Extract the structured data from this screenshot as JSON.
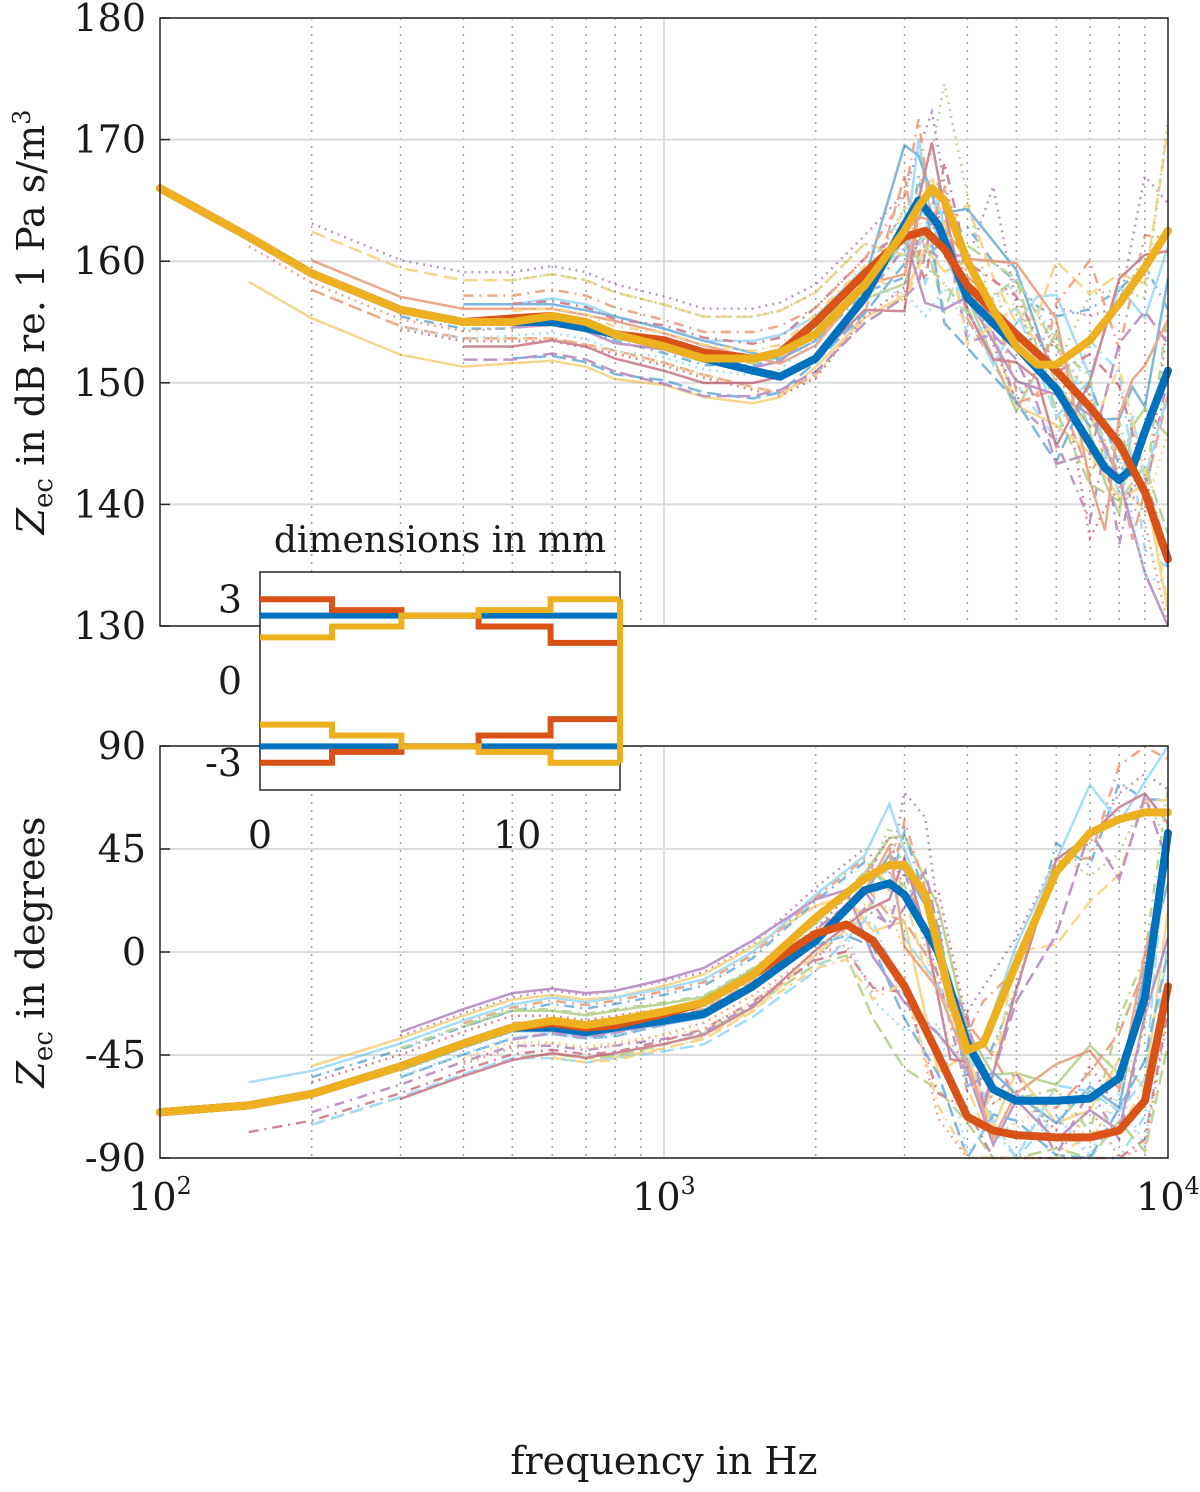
{
  "chart_data": [
    {
      "type": "line",
      "panel": "magnitude",
      "ylabel_main": "Z",
      "ylabel_sub": "ec",
      "ylabel_rest": " in dB re. 1 Pa s/m",
      "ylabel_sup": "3",
      "xscale": "log",
      "xlim": [
        100,
        10000
      ],
      "ylim": [
        130,
        180
      ],
      "yticks": [
        "130",
        "140",
        "150",
        "160",
        "170",
        "180"
      ],
      "grid": true,
      "series": [
        {
          "name": "blue",
          "color": "#0072BD",
          "x": [
            100,
            150,
            200,
            300,
            400,
            500,
            600,
            700,
            800,
            1000,
            1200,
            1500,
            1700,
            2000,
            2500,
            3000,
            3200,
            3500,
            4000,
            5000,
            6000,
            7000,
            7500,
            8000,
            8500,
            9000,
            10000
          ],
          "y": [
            166,
            162,
            159,
            156,
            155,
            155,
            155,
            154.5,
            154,
            153,
            152,
            151,
            150.5,
            152,
            157,
            163,
            165,
            163,
            157,
            153,
            149.5,
            145,
            143,
            142,
            143,
            146,
            151
          ]
        },
        {
          "name": "orange",
          "color": "#D95319",
          "x": [
            100,
            150,
            200,
            300,
            400,
            500,
            600,
            700,
            800,
            1000,
            1200,
            1500,
            1700,
            2000,
            2500,
            3000,
            3300,
            3600,
            4000,
            5000,
            6000,
            7000,
            8000,
            9000,
            10000
          ],
          "y": [
            166,
            162,
            159,
            156,
            155,
            155.3,
            155.5,
            155,
            154,
            153.5,
            152.5,
            152,
            152.5,
            155,
            159,
            162,
            162.5,
            161,
            158,
            154,
            151,
            148,
            145,
            141,
            135.5
          ]
        },
        {
          "name": "yellow",
          "color": "#EDB120",
          "x": [
            100,
            150,
            200,
            300,
            400,
            500,
            600,
            700,
            800,
            1000,
            1200,
            1500,
            1700,
            2000,
            2500,
            3000,
            3200,
            3400,
            3600,
            4000,
            4500,
            5000,
            5500,
            6000,
            7000,
            8000,
            9000,
            10000
          ],
          "y": [
            166,
            162,
            159,
            156,
            155,
            155,
            155.5,
            155,
            154,
            153,
            152,
            152,
            152.5,
            154,
            158,
            162.5,
            164.5,
            166,
            165,
            160,
            156,
            153,
            151.5,
            151.5,
            153.5,
            156.5,
            159.5,
            162.5
          ]
        }
      ]
    },
    {
      "type": "line",
      "panel": "phase",
      "ylabel_main": "Z",
      "ylabel_sub": "ec",
      "ylabel_rest": " in degrees",
      "xscale": "log",
      "xlim": [
        100,
        10000
      ],
      "ylim": [
        -90,
        90
      ],
      "yticks": [
        "-90",
        "-45",
        "0",
        "45",
        "90"
      ],
      "xlabel": "frequency in Hz",
      "xticks": [
        {
          "base": "10",
          "exp": "2"
        },
        {
          "base": "10",
          "exp": "3"
        },
        {
          "base": "10",
          "exp": "4"
        }
      ],
      "grid": true,
      "series": [
        {
          "name": "blue",
          "color": "#0072BD",
          "x": [
            100,
            150,
            200,
            300,
            400,
            500,
            600,
            700,
            800,
            1000,
            1200,
            1500,
            2000,
            2500,
            2800,
            3000,
            3500,
            4000,
            4500,
            5000,
            6000,
            7000,
            8000,
            9000,
            10000
          ],
          "y": [
            -70,
            -67,
            -62,
            -50,
            -40,
            -33,
            -33,
            -35,
            -33,
            -30,
            -27,
            -15,
            5,
            27,
            30,
            25,
            0,
            -40,
            -60,
            -65,
            -65,
            -64,
            -55,
            -20,
            52
          ]
        },
        {
          "name": "orange",
          "color": "#D95319",
          "x": [
            100,
            150,
            200,
            300,
            400,
            500,
            600,
            700,
            800,
            1000,
            1200,
            1500,
            2000,
            2300,
            2600,
            3000,
            3500,
            4000,
            4500,
            5000,
            6000,
            7000,
            8000,
            9000,
            10000
          ],
          "y": [
            -70,
            -67,
            -62,
            -50,
            -40,
            -33,
            -31,
            -33,
            -32,
            -27,
            -22,
            -10,
            8,
            12,
            5,
            -15,
            -45,
            -72,
            -78,
            -80,
            -81,
            -81,
            -78,
            -65,
            -15
          ]
        },
        {
          "name": "yellow",
          "color": "#EDB120",
          "x": [
            100,
            150,
            200,
            300,
            400,
            500,
            600,
            700,
            800,
            1000,
            1200,
            1500,
            2000,
            2500,
            2800,
            3000,
            3300,
            3700,
            4000,
            4300,
            5000,
            6000,
            7000,
            8000,
            9000,
            10000
          ],
          "y": [
            -70,
            -67,
            -62,
            -50,
            -40,
            -33,
            -30,
            -32,
            -30,
            -26,
            -22,
            -10,
            15,
            32,
            38,
            38,
            25,
            -20,
            -43,
            -40,
            -5,
            35,
            52,
            58,
            61,
            61
          ]
        }
      ]
    },
    {
      "type": "line",
      "panel": "inset",
      "title": "dimensions in mm",
      "xlim": [
        0,
        14
      ],
      "ylim": [
        -4,
        4
      ],
      "xticks": [
        "0",
        "10"
      ],
      "yticks": [
        "3",
        "0",
        "-3"
      ],
      "series": [
        {
          "name": "blue",
          "color": "#0072BD",
          "x": [
            0,
            2.8,
            2.8,
            5.5,
            5.5,
            8.5,
            8.5,
            11.3,
            11.3,
            14
          ],
          "y": [
            2.4,
            2.4,
            2.4,
            2.4,
            2.4,
            2.4,
            2.4,
            2.4,
            2.4,
            2.4
          ]
        },
        {
          "name": "orange",
          "color": "#D95319",
          "x": [
            0,
            2.8,
            2.8,
            5.5,
            5.5,
            8.5,
            8.5,
            11.3,
            11.3,
            14
          ],
          "y": [
            3.0,
            3.0,
            2.6,
            2.6,
            2.4,
            2.4,
            2.0,
            2.0,
            1.4,
            1.4
          ]
        },
        {
          "name": "yellow",
          "color": "#EDB120",
          "x": [
            0,
            2.8,
            2.8,
            5.5,
            5.5,
            8.5,
            8.5,
            11.3,
            11.3,
            14
          ],
          "y": [
            1.6,
            1.6,
            2.0,
            2.0,
            2.4,
            2.4,
            2.6,
            2.6,
            3.0,
            3.0
          ]
        }
      ]
    }
  ]
}
